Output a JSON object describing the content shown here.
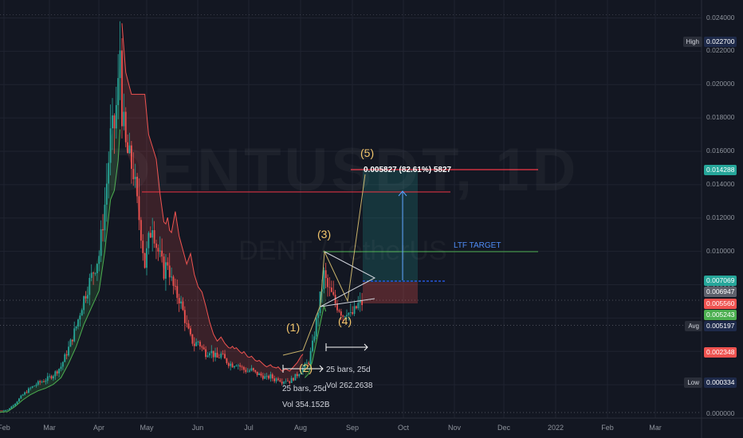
{
  "watermark": {
    "symbol": "DENTUSDT, 1D",
    "subtitle": "DENT / TetherUS"
  },
  "chart_data": {
    "type": "candlestick",
    "x_labels": [
      "Feb",
      "Mar",
      "Apr",
      "May",
      "Jun",
      "Jul",
      "Aug",
      "Sep",
      "Oct",
      "Nov",
      "Dec",
      "2022",
      "Feb",
      "Mar"
    ],
    "y_ticks": [
      "0.000000",
      "0.002000",
      "0.004000",
      "0.006000",
      "0.008000",
      "0.010000",
      "0.012000",
      "0.014000",
      "0.016000",
      "0.018000",
      "0.020000",
      "0.022000",
      "0.024000"
    ],
    "ylim": [
      0,
      0.0246
    ],
    "price_tags": [
      {
        "label": "High",
        "value": "0.022700",
        "color": "#1e2a4a"
      },
      {
        "label": "",
        "value": "0.014288",
        "color": "#26a69a"
      },
      {
        "label": "",
        "value": "0.007069",
        "color": "#26a69a"
      },
      {
        "label": "",
        "value": "0.006947",
        "color": "#5d606b"
      },
      {
        "label": "",
        "value": "0.005560",
        "color": "#ef5350"
      },
      {
        "label": "",
        "value": "0.005243",
        "color": "#4caf50"
      },
      {
        "label": "Avg",
        "value": "0.005197",
        "color": "#1e2a4a"
      },
      {
        "label": "",
        "value": "0.002348",
        "color": "#ef5350"
      },
      {
        "label": "Low",
        "value": "0.000334",
        "color": "#1e2a4a"
      }
    ],
    "price_path": [
      [
        0,
        0.00045
      ],
      [
        4,
        0.0005
      ],
      [
        8,
        0.0009
      ],
      [
        12,
        0.0014
      ],
      [
        16,
        0.0018
      ],
      [
        20,
        0.0021
      ],
      [
        24,
        0.0023
      ],
      [
        28,
        0.0026
      ],
      [
        32,
        0.0031
      ],
      [
        36,
        0.0042
      ],
      [
        40,
        0.0055
      ],
      [
        44,
        0.0072
      ],
      [
        48,
        0.0085
      ],
      [
        52,
        0.0098
      ],
      [
        55,
        0.0128
      ],
      [
        58,
        0.0168
      ],
      [
        60,
        0.0175
      ],
      [
        62,
        0.0198
      ],
      [
        63,
        0.0222
      ],
      [
        64,
        0.0185
      ],
      [
        66,
        0.0162
      ],
      [
        68,
        0.0155
      ],
      [
        70,
        0.0148
      ],
      [
        72,
        0.0128
      ],
      [
        74,
        0.0112
      ],
      [
        76,
        0.0092
      ],
      [
        78,
        0.0106
      ],
      [
        80,
        0.0118
      ],
      [
        82,
        0.0104
      ],
      [
        84,
        0.0096
      ],
      [
        86,
        0.0088
      ],
      [
        88,
        0.0094
      ],
      [
        90,
        0.0082
      ],
      [
        92,
        0.0075
      ],
      [
        94,
        0.0072
      ],
      [
        96,
        0.0064
      ],
      [
        98,
        0.0055
      ],
      [
        100,
        0.0048
      ],
      [
        102,
        0.0044
      ],
      [
        104,
        0.0046
      ],
      [
        106,
        0.0042
      ],
      [
        108,
        0.0039
      ],
      [
        110,
        0.0041
      ],
      [
        112,
        0.0038
      ],
      [
        114,
        0.0036
      ],
      [
        116,
        0.0038
      ],
      [
        118,
        0.0035
      ],
      [
        120,
        0.0033
      ],
      [
        122,
        0.0032
      ],
      [
        124,
        0.0033
      ],
      [
        126,
        0.0031
      ],
      [
        128,
        0.0029
      ],
      [
        130,
        0.0028
      ],
      [
        132,
        0.0029
      ],
      [
        134,
        0.0027
      ],
      [
        136,
        0.0026
      ],
      [
        138,
        0.0025
      ],
      [
        140,
        0.0024
      ],
      [
        142,
        0.0025
      ],
      [
        144,
        0.0023
      ],
      [
        146,
        0.0024
      ],
      [
        148,
        0.0022
      ],
      [
        150,
        0.0023
      ],
      [
        152,
        0.0022
      ],
      [
        154,
        0.0024
      ],
      [
        156,
        0.0026
      ],
      [
        158,
        0.0029
      ],
      [
        160,
        0.0031
      ],
      [
        162,
        0.0034
      ],
      [
        164,
        0.0044
      ],
      [
        166,
        0.0058
      ],
      [
        168,
        0.0072
      ],
      [
        170,
        0.0086
      ],
      [
        172,
        0.0078
      ],
      [
        174,
        0.0074
      ],
      [
        176,
        0.0069
      ],
      [
        178,
        0.0066
      ],
      [
        180,
        0.0062
      ],
      [
        182,
        0.0065
      ],
      [
        184,
        0.0061
      ],
      [
        186,
        0.0064
      ],
      [
        188,
        0.0068
      ],
      [
        190,
        0.0069
      ]
    ],
    "annotations": {
      "waves": [
        "(1)",
        "(2)",
        "(3)",
        "(4)",
        "(5)"
      ],
      "projection_text": "0.005827 (82.61%) 5827",
      "ltf_target": "LTF TARGET",
      "bars_label_1": "25 bars, 25d",
      "vol_label_1": "Vol 354.152B",
      "bars_label_2": "25 bars, 25d",
      "vol_label_2": "Vol 262.2638"
    }
  }
}
